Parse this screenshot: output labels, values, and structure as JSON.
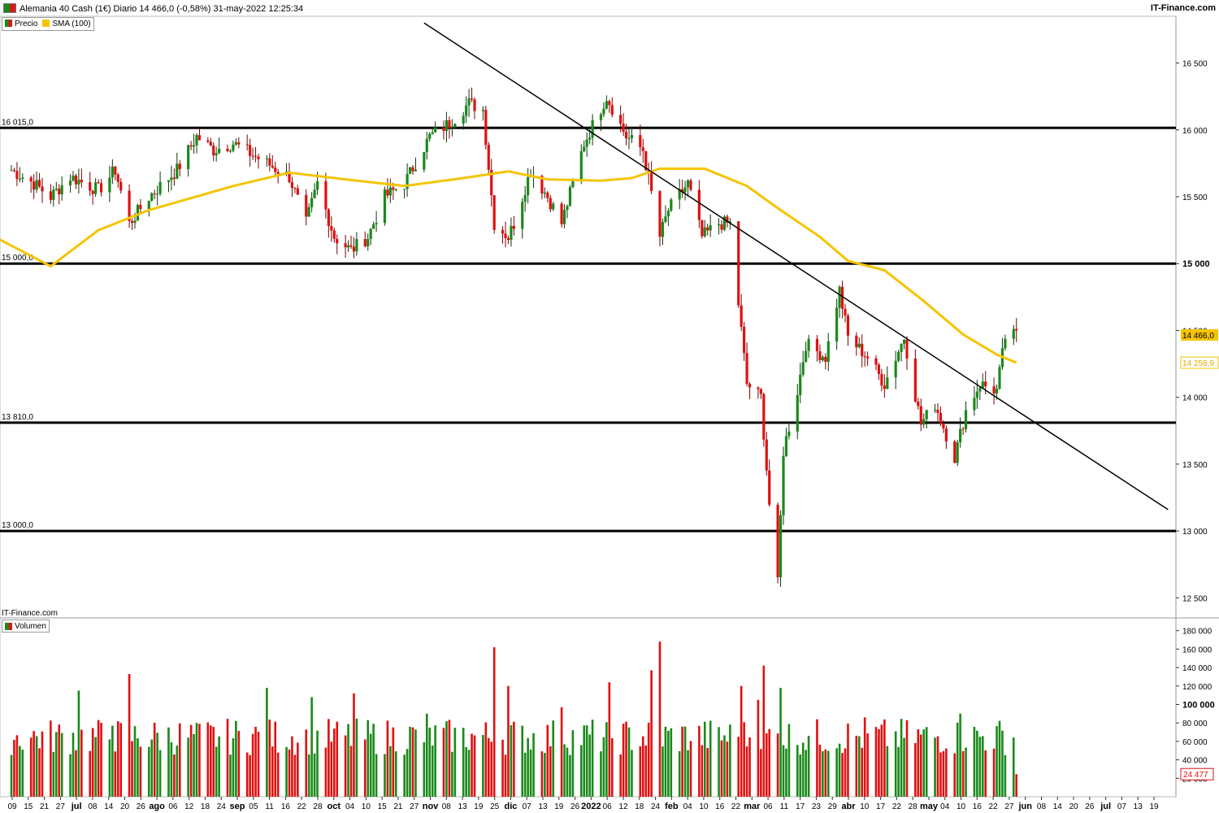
{
  "header": {
    "title": "Alemania 40 Cash (1€) Diario 14 466,0 (-0,58%) 31-may-2022 12:25:34",
    "brand": "IT-Finance.com"
  },
  "legend": {
    "price_label": "Precio",
    "sma_label": "SMA (100)"
  },
  "footer_brand": "IT-Finance.com",
  "volume_legend": "Volumen",
  "colors": {
    "up": "#1a8a1a",
    "down": "#e01010",
    "sma": "#f5c400",
    "line": "#000000",
    "grid": "#e6e6e6"
  },
  "chart_data": [
    {
      "type": "candlestick",
      "ylim": [
        12350,
        16850
      ],
      "yticks": [
        "12 500",
        "13 000",
        "13 500",
        "14 000",
        "14 500",
        "15 000",
        "15 500",
        "16 000",
        "16 500"
      ],
      "bold_ytick": "15 000",
      "xticks": [
        "09",
        "15",
        "21",
        "27",
        "jul",
        "08",
        "14",
        "20",
        "26",
        "ago",
        "06",
        "12",
        "18",
        "24",
        "sep",
        "05",
        "11",
        "16",
        "22",
        "28",
        "oct",
        "04",
        "10",
        "15",
        "21",
        "27",
        "nov",
        "08",
        "13",
        "19",
        "25",
        "dic",
        "07",
        "13",
        "19",
        "26",
        "2022",
        "06",
        "12",
        "18",
        "24",
        "feb",
        "04",
        "10",
        "16",
        "22",
        "mar",
        "06",
        "11",
        "17",
        "23",
        "29",
        "abr",
        "10",
        "17",
        "22",
        "28",
        "may",
        "04",
        "10",
        "16",
        "22",
        "27",
        "jun",
        "08",
        "14",
        "20",
        "26",
        "jul",
        "07",
        "13",
        "19"
      ],
      "bold_xticks": [
        "jul",
        "ago",
        "sep",
        "oct",
        "nov",
        "dic",
        "2022",
        "feb",
        "mar",
        "abr",
        "may",
        "jun"
      ],
      "horizontal_levels": [
        {
          "value": 16015,
          "label": "16 015,0"
        },
        {
          "value": 15000,
          "label": "15 000,0"
        },
        {
          "value": 13810,
          "label": "13 810,0"
        },
        {
          "value": 13000,
          "label": "13 000,0"
        }
      ],
      "trendline": {
        "from": {
          "date": "2021-11-01",
          "value": 16800
        },
        "to": {
          "date": "2022-07-24",
          "value": 13160
        }
      },
      "last_price": {
        "value": 14466.0,
        "label": "14 466,0"
      },
      "last_sma": {
        "value": 14258.9,
        "label": "14 258,9"
      },
      "series": [
        {
          "name": "Precio",
          "anchors": [
            [
              "2021-06-07",
              15700
            ],
            [
              "2021-06-15",
              15600
            ],
            [
              "2021-06-21",
              15500
            ],
            [
              "2021-06-28",
              15650
            ],
            [
              "2021-07-08",
              15550
            ],
            [
              "2021-07-14",
              15700
            ],
            [
              "2021-07-19",
              15300
            ],
            [
              "2021-07-26",
              15500
            ],
            [
              "2021-08-05",
              15700
            ],
            [
              "2021-08-12",
              15950
            ],
            [
              "2021-08-18",
              15850
            ],
            [
              "2021-08-25",
              15900
            ],
            [
              "2021-09-06",
              15750
            ],
            [
              "2021-09-14",
              15650
            ],
            [
              "2021-09-20",
              15300
            ],
            [
              "2021-09-24",
              15600
            ],
            [
              "2021-09-30",
              15200
            ],
            [
              "2021-10-06",
              15100
            ],
            [
              "2021-10-12",
              15200
            ],
            [
              "2021-10-18",
              15500
            ],
            [
              "2021-10-25",
              15600
            ],
            [
              "2021-11-03",
              15950
            ],
            [
              "2021-11-10",
              16050
            ],
            [
              "2021-11-17",
              16200
            ],
            [
              "2021-11-22",
              16150
            ],
            [
              "2021-11-26",
              15300
            ],
            [
              "2021-12-01",
              15200
            ],
            [
              "2021-12-03",
              15300
            ],
            [
              "2021-12-09",
              15700
            ],
            [
              "2021-12-15",
              15500
            ],
            [
              "2021-12-20",
              15300
            ],
            [
              "2021-12-28",
              15900
            ],
            [
              "2022-01-05",
              16250
            ],
            [
              "2022-01-12",
              15950
            ],
            [
              "2022-01-18",
              15850
            ],
            [
              "2022-01-24",
              15200
            ],
            [
              "2022-01-27",
              15400
            ],
            [
              "2022-02-03",
              15600
            ],
            [
              "2022-02-08",
              15200
            ],
            [
              "2022-02-14",
              15300
            ],
            [
              "2022-02-18",
              15300
            ],
            [
              "2022-02-24",
              14100
            ],
            [
              "2022-03-01",
              14000
            ],
            [
              "2022-03-04",
              13200
            ],
            [
              "2022-03-07",
              12600
            ],
            [
              "2022-03-09",
              13600
            ],
            [
              "2022-03-14",
              14050
            ],
            [
              "2022-03-17",
              14400
            ],
            [
              "2022-03-24",
              14300
            ],
            [
              "2022-03-29",
              14800
            ],
            [
              "2022-04-01",
              14450
            ],
            [
              "2022-04-08",
              14300
            ],
            [
              "2022-04-14",
              14100
            ],
            [
              "2022-04-21",
              14450
            ],
            [
              "2022-04-27",
              13800
            ],
            [
              "2022-05-02",
              13950
            ],
            [
              "2022-05-09",
              13550
            ],
            [
              "2022-05-13",
              13900
            ],
            [
              "2022-05-18",
              14100
            ],
            [
              "2022-05-24",
              14050
            ],
            [
              "2022-05-27",
              14450
            ],
            [
              "2022-05-31",
              14466
            ]
          ]
        },
        {
          "name": "SMA (100)",
          "points": [
            [
              "2021-06-01",
              15200
            ],
            [
              "2021-06-21",
              14980
            ],
            [
              "2021-07-08",
              15250
            ],
            [
              "2021-07-26",
              15400
            ],
            [
              "2021-08-25",
              15580
            ],
            [
              "2021-09-14",
              15680
            ],
            [
              "2021-10-04",
              15630
            ],
            [
              "2021-10-25",
              15580
            ],
            [
              "2021-11-15",
              15640
            ],
            [
              "2021-12-01",
              15690
            ],
            [
              "2021-12-15",
              15630
            ],
            [
              "2022-01-03",
              15620
            ],
            [
              "2022-01-14",
              15640
            ],
            [
              "2022-01-24",
              15710
            ],
            [
              "2022-02-09",
              15710
            ],
            [
              "2022-02-24",
              15580
            ],
            [
              "2022-03-08",
              15400
            ],
            [
              "2022-03-22",
              15200
            ],
            [
              "2022-04-01",
              15020
            ],
            [
              "2022-04-14",
              14950
            ],
            [
              "2022-04-28",
              14720
            ],
            [
              "2022-05-12",
              14470
            ],
            [
              "2022-05-24",
              14320
            ],
            [
              "2022-05-31",
              14259
            ]
          ]
        }
      ]
    },
    {
      "type": "bar",
      "name": "Volumen",
      "ylim": [
        0,
        185000
      ],
      "yticks": [
        "20 000",
        "40 000",
        "60 000",
        "80 000",
        "100 000",
        "120 000",
        "140 000",
        "160 000",
        "180 000"
      ],
      "bold_ytick": "100 000",
      "last_volume": {
        "value": 24477,
        "label": "24 477"
      },
      "spikes": [
        [
          "2021-07-19",
          133000
        ],
        [
          "2021-07-13",
          77000
        ],
        [
          "2021-07-01",
          115000
        ],
        [
          "2021-08-12",
          80000
        ],
        [
          "2021-09-06",
          118000
        ],
        [
          "2021-09-22",
          108000
        ],
        [
          "2021-10-07",
          112000
        ],
        [
          "2021-11-02",
          90000
        ],
        [
          "2021-11-26",
          162000
        ],
        [
          "2021-12-01",
          120000
        ],
        [
          "2021-12-20",
          97000
        ],
        [
          "2022-01-06",
          124000
        ],
        [
          "2022-01-24",
          168000
        ],
        [
          "2022-01-21",
          137000
        ],
        [
          "2022-02-22",
          120000
        ],
        [
          "2022-02-28",
          105000
        ],
        [
          "2022-03-02",
          142000
        ],
        [
          "2022-03-08",
          118000
        ],
        [
          "2022-04-07",
          86000
        ],
        [
          "2022-05-11",
          90000
        ]
      ]
    }
  ]
}
